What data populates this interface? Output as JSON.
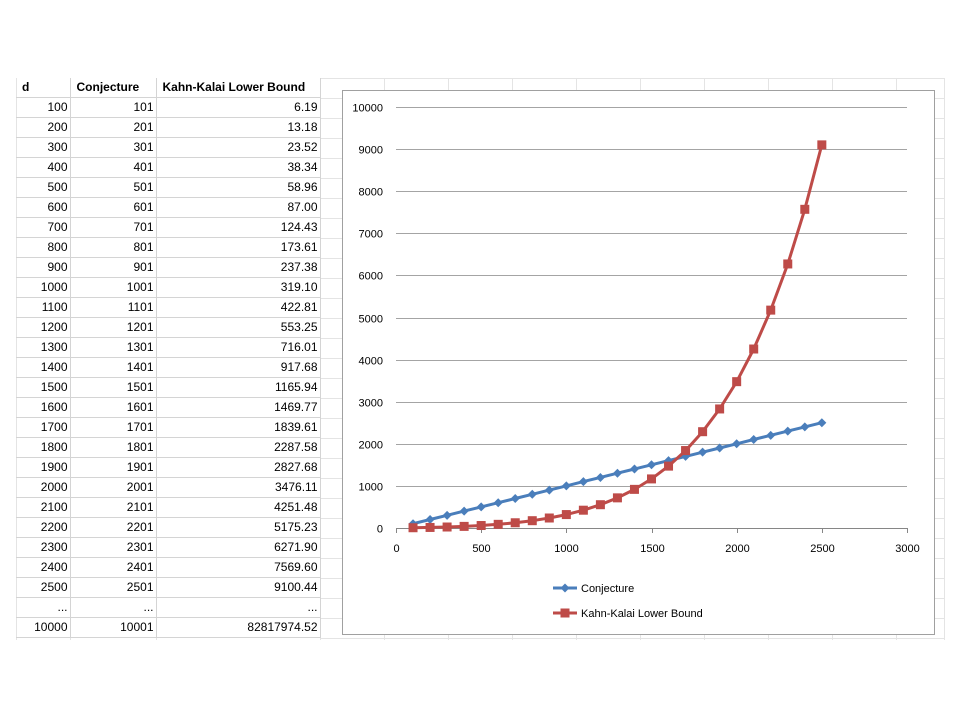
{
  "table": {
    "headers": [
      "d",
      "Conjecture",
      "Kahn-Kalai Lower Bound"
    ],
    "rows": [
      [
        "100",
        "101",
        "6.19"
      ],
      [
        "200",
        "201",
        "13.18"
      ],
      [
        "300",
        "301",
        "23.52"
      ],
      [
        "400",
        "401",
        "38.34"
      ],
      [
        "500",
        "501",
        "58.96"
      ],
      [
        "600",
        "601",
        "87.00"
      ],
      [
        "700",
        "701",
        "124.43"
      ],
      [
        "800",
        "801",
        "173.61"
      ],
      [
        "900",
        "901",
        "237.38"
      ],
      [
        "1000",
        "1001",
        "319.10"
      ],
      [
        "1100",
        "1101",
        "422.81"
      ],
      [
        "1200",
        "1201",
        "553.25"
      ],
      [
        "1300",
        "1301",
        "716.01"
      ],
      [
        "1400",
        "1401",
        "917.68"
      ],
      [
        "1500",
        "1501",
        "1165.94"
      ],
      [
        "1600",
        "1601",
        "1469.77"
      ],
      [
        "1700",
        "1701",
        "1839.61"
      ],
      [
        "1800",
        "1801",
        "2287.58"
      ],
      [
        "1900",
        "1901",
        "2827.68"
      ],
      [
        "2000",
        "2001",
        "3476.11"
      ],
      [
        "2100",
        "2101",
        "4251.48"
      ],
      [
        "2200",
        "2201",
        "5175.23"
      ],
      [
        "2300",
        "2301",
        "6271.90"
      ],
      [
        "2400",
        "2401",
        "7569.60"
      ],
      [
        "2500",
        "2501",
        "9100.44"
      ],
      [
        "...",
        "...",
        "..."
      ],
      [
        "10000",
        "10001",
        "82817974.52"
      ]
    ]
  },
  "chart_data": {
    "type": "line",
    "x": [
      100,
      200,
      300,
      400,
      500,
      600,
      700,
      800,
      900,
      1000,
      1100,
      1200,
      1300,
      1400,
      1500,
      1600,
      1700,
      1800,
      1900,
      2000,
      2100,
      2200,
      2300,
      2400,
      2500
    ],
    "series": [
      {
        "name": "Conjecture",
        "color": "#4a7ebb",
        "marker": "diamond",
        "values": [
          101,
          201,
          301,
          401,
          501,
          601,
          701,
          801,
          901,
          1001,
          1101,
          1201,
          1301,
          1401,
          1501,
          1601,
          1701,
          1801,
          1901,
          2001,
          2101,
          2201,
          2301,
          2401,
          2501
        ]
      },
      {
        "name": "Kahn-Kalai Lower Bound",
        "color": "#be4b48",
        "marker": "square",
        "values": [
          6.19,
          13.18,
          23.52,
          38.34,
          58.96,
          87.0,
          124.43,
          173.61,
          237.38,
          319.1,
          422.81,
          553.25,
          716.01,
          917.68,
          1165.94,
          1469.77,
          1839.61,
          2287.58,
          2827.68,
          3476.11,
          4251.48,
          5175.23,
          6271.9,
          7569.6,
          9100.44
        ]
      }
    ],
    "title": "",
    "xlabel": "",
    "ylabel": "",
    "xlim": [
      0,
      3000
    ],
    "ylim": [
      0,
      10000
    ],
    "x_ticks": [
      "0",
      "500",
      "1000",
      "1500",
      "2000",
      "2500",
      "3000"
    ],
    "y_ticks": [
      "0",
      "1000",
      "2000",
      "3000",
      "4000",
      "5000",
      "6000",
      "7000",
      "8000",
      "9000",
      "10000"
    ],
    "grid": "horizontal",
    "legend_position": "bottom"
  }
}
